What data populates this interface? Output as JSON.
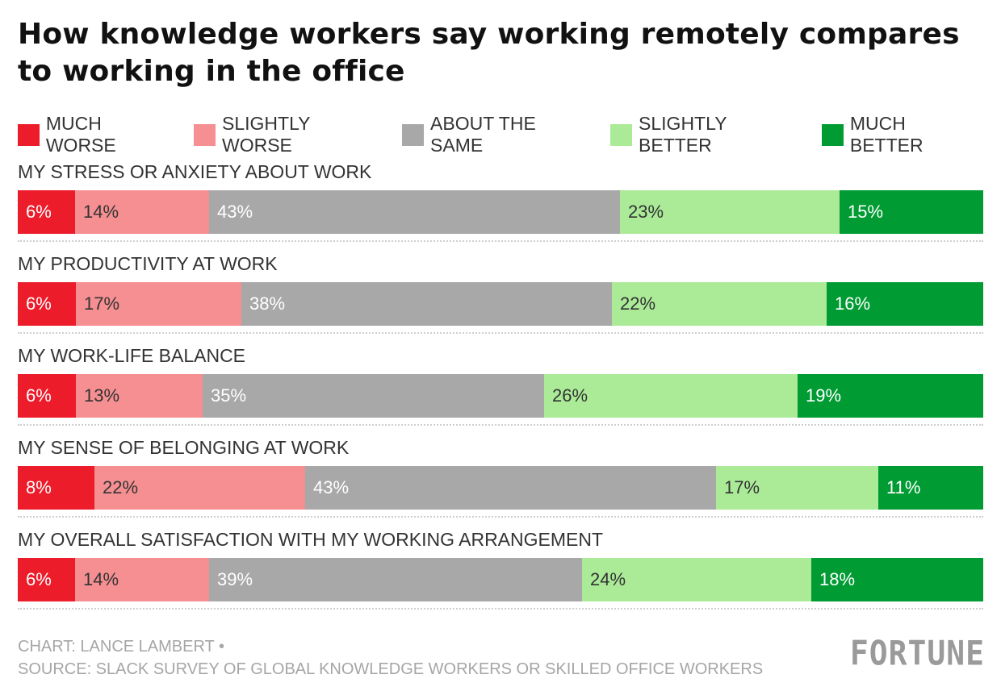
{
  "chart_data": {
    "type": "bar",
    "orientation": "horizontal-stacked-100",
    "title": "How knowledge workers say working remotely compares to working in the office",
    "legend_position": "top",
    "series": [
      {
        "name": "MUCH WORSE",
        "color": "#ec1c2b",
        "values": [
          6,
          6,
          6,
          8,
          6
        ]
      },
      {
        "name": "SLIGHTLY WORSE",
        "color": "#f58f91",
        "values": [
          14,
          17,
          13,
          22,
          14
        ]
      },
      {
        "name": "ABOUT THE SAME",
        "color": "#a8a8a8",
        "values": [
          43,
          38,
          35,
          43,
          39
        ]
      },
      {
        "name": "SLIGHTLY BETTER",
        "color": "#abeb98",
        "values": [
          23,
          22,
          26,
          17,
          24
        ]
      },
      {
        "name": "MUCH BETTER",
        "color": "#009b33",
        "values": [
          15,
          16,
          19,
          11,
          18
        ]
      }
    ],
    "categories": [
      "MY STRESS OR ANXIETY ABOUT WORK",
      "MY PRODUCTIVITY AT WORK",
      "MY WORK-LIFE BALANCE",
      "MY SENSE OF BELONGING AT WORK",
      "MY OVERALL SATISFACTION WITH MY WORKING ARRANGEMENT"
    ],
    "label_colors": [
      "#ffffff",
      "#333333",
      "#ffffff",
      "#333333",
      "#ffffff"
    ]
  },
  "footer": {
    "credit": "CHART: LANCE LAMBERT •",
    "source": "SOURCE: SLACK SURVEY OF GLOBAL KNOWLEDGE WORKERS OR SKILLED OFFICE WORKERS"
  },
  "brand": "FORTUNE"
}
